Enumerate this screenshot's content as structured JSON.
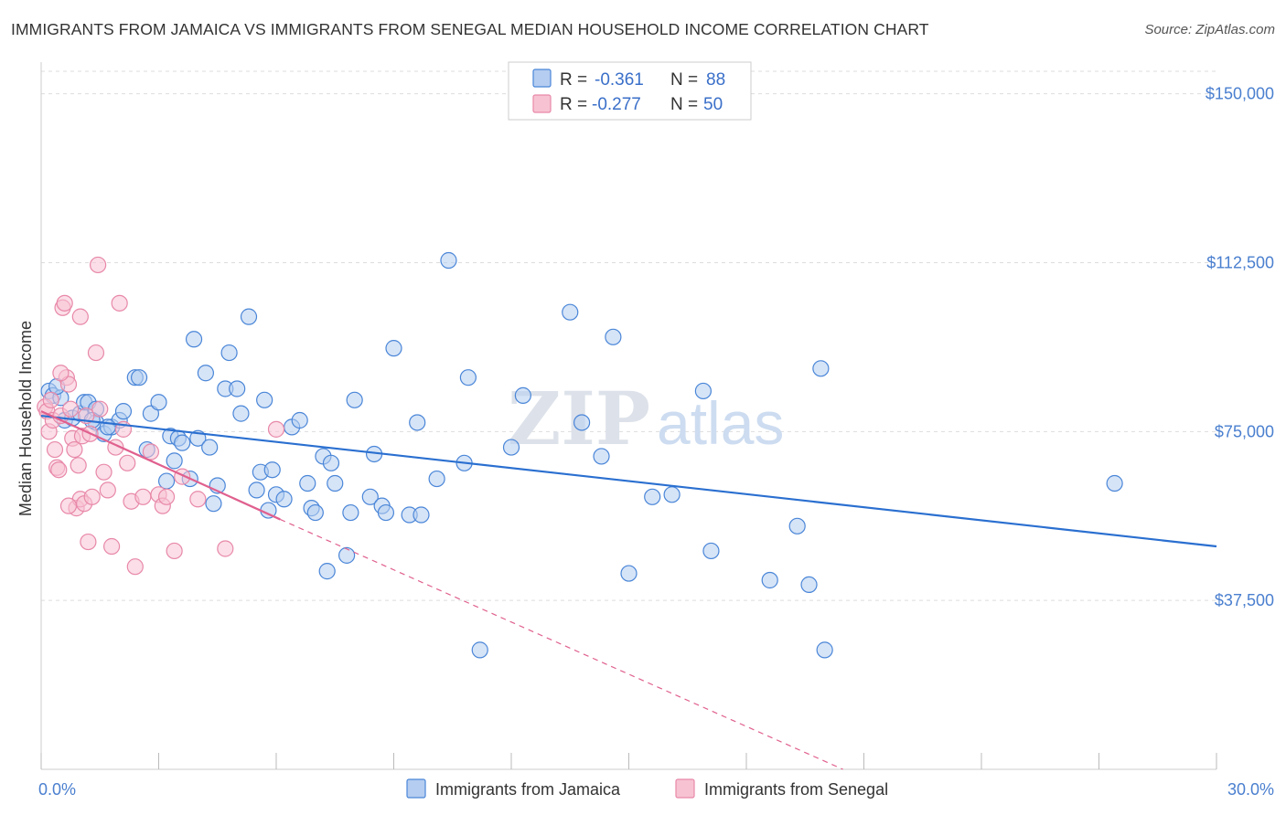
{
  "title": "IMMIGRANTS FROM JAMAICA VS IMMIGRANTS FROM SENEGAL MEDIAN HOUSEHOLD INCOME CORRELATION CHART",
  "source": "Source: ZipAtlas.com",
  "watermark": {
    "zip": "ZIP",
    "atlas": "atlas"
  },
  "colors": {
    "jamaica": "#4a86d8",
    "jamaica_fill": "#b5cdf0",
    "jamaica_line": "#2a6fd0",
    "senegal": "#e888a8",
    "senegal_fill": "#f7c3d3",
    "senegal_line": "#e0608e",
    "grid": "#dddddd",
    "tick_label": "#4a7fcf"
  },
  "legend": {
    "rows": [
      {
        "r_label": "R =",
        "r_value": "-0.361",
        "n_label": "N =",
        "n_value": "88"
      },
      {
        "r_label": "R =",
        "r_value": "-0.277",
        "n_label": "N =",
        "n_value": "50"
      }
    ]
  },
  "chart_data": {
    "type": "scatter",
    "ylabel": "Median Household Income",
    "xlabel": "",
    "x_tick_labels": [
      "0.0%",
      "30.0%"
    ],
    "y_tick_labels": [
      "$37,500",
      "$75,000",
      "$112,500",
      "$150,000"
    ],
    "y_ticks": [
      37500,
      75000,
      112500,
      150000
    ],
    "xlim": [
      0,
      30
    ],
    "ylim": [
      0,
      155000
    ],
    "grid": true,
    "legend_position": "top-center",
    "series": [
      {
        "name": "Immigrants from Jamaica",
        "r": -0.361,
        "n": 88,
        "trend": {
          "x": [
            0,
            30
          ],
          "y": [
            78500,
            49500
          ]
        },
        "points": [
          [
            0.2,
            84000
          ],
          [
            0.3,
            83000
          ],
          [
            0.5,
            82500
          ],
          [
            0.6,
            77500
          ],
          [
            0.8,
            78000
          ],
          [
            1.0,
            79000
          ],
          [
            1.1,
            81500
          ],
          [
            1.2,
            81500
          ],
          [
            1.4,
            80000
          ],
          [
            1.4,
            77000
          ],
          [
            1.6,
            74500
          ],
          [
            1.8,
            76000
          ],
          [
            2.0,
            77500
          ],
          [
            2.1,
            79500
          ],
          [
            2.4,
            87000
          ],
          [
            2.5,
            87000
          ],
          [
            2.7,
            71000
          ],
          [
            2.8,
            79000
          ],
          [
            3.0,
            81500
          ],
          [
            3.2,
            64000
          ],
          [
            3.3,
            74000
          ],
          [
            3.4,
            68500
          ],
          [
            3.5,
            73500
          ],
          [
            3.6,
            72500
          ],
          [
            3.8,
            64500
          ],
          [
            3.9,
            95500
          ],
          [
            4.0,
            73500
          ],
          [
            4.2,
            88000
          ],
          [
            4.3,
            71500
          ],
          [
            4.4,
            59000
          ],
          [
            4.5,
            63000
          ],
          [
            4.7,
            84500
          ],
          [
            4.8,
            92500
          ],
          [
            5.0,
            84500
          ],
          [
            5.1,
            79000
          ],
          [
            5.3,
            100500
          ],
          [
            5.5,
            62000
          ],
          [
            5.6,
            66000
          ],
          [
            5.7,
            82000
          ],
          [
            5.8,
            57500
          ],
          [
            5.9,
            66500
          ],
          [
            6.0,
            61000
          ],
          [
            6.2,
            60000
          ],
          [
            6.4,
            76000
          ],
          [
            6.6,
            77500
          ],
          [
            6.8,
            63500
          ],
          [
            6.9,
            58000
          ],
          [
            7.0,
            57000
          ],
          [
            7.2,
            69500
          ],
          [
            7.4,
            68000
          ],
          [
            7.5,
            63500
          ],
          [
            7.3,
            44000
          ],
          [
            7.8,
            47500
          ],
          [
            7.9,
            57000
          ],
          [
            8.0,
            82000
          ],
          [
            8.4,
            60500
          ],
          [
            8.5,
            70000
          ],
          [
            8.7,
            58500
          ],
          [
            8.8,
            57000
          ],
          [
            9.0,
            93500
          ],
          [
            9.4,
            56500
          ],
          [
            9.6,
            77000
          ],
          [
            9.7,
            56500
          ],
          [
            10.1,
            64500
          ],
          [
            10.4,
            113000
          ],
          [
            10.8,
            68000
          ],
          [
            10.9,
            87000
          ],
          [
            11.2,
            26500
          ],
          [
            12.0,
            71500
          ],
          [
            12.3,
            83000
          ],
          [
            13.5,
            101500
          ],
          [
            13.8,
            77000
          ],
          [
            14.3,
            69500
          ],
          [
            14.6,
            96000
          ],
          [
            15.0,
            43500
          ],
          [
            15.6,
            60500
          ],
          [
            16.1,
            61000
          ],
          [
            16.9,
            84000
          ],
          [
            17.1,
            48500
          ],
          [
            18.6,
            42000
          ],
          [
            19.3,
            54000
          ],
          [
            19.6,
            41000
          ],
          [
            19.9,
            89000
          ],
          [
            20.0,
            26500
          ],
          [
            27.4,
            63500
          ],
          [
            1.7,
            76000
          ],
          [
            0.4,
            85000
          ],
          [
            1.3,
            77500
          ]
        ]
      },
      {
        "name": "Immigrants from Senegal",
        "r": -0.277,
        "n": 50,
        "trend": {
          "x": [
            0,
            6.1
          ],
          "y": [
            79500,
            55500
          ]
        },
        "trend_extension": {
          "x": [
            6.1,
            21.5
          ],
          "y": [
            55500,
            -4000
          ]
        },
        "points": [
          [
            0.1,
            80500
          ],
          [
            0.15,
            79500
          ],
          [
            0.2,
            75000
          ],
          [
            0.25,
            82000
          ],
          [
            0.3,
            77500
          ],
          [
            0.35,
            71000
          ],
          [
            0.4,
            67000
          ],
          [
            0.45,
            66500
          ],
          [
            0.5,
            78500
          ],
          [
            0.55,
            102500
          ],
          [
            0.6,
            103500
          ],
          [
            0.65,
            87000
          ],
          [
            0.7,
            85500
          ],
          [
            0.75,
            80000
          ],
          [
            0.8,
            73500
          ],
          [
            0.85,
            71000
          ],
          [
            0.9,
            58000
          ],
          [
            0.95,
            67500
          ],
          [
            1.0,
            60000
          ],
          [
            1.05,
            74000
          ],
          [
            1.1,
            59000
          ],
          [
            1.15,
            78500
          ],
          [
            1.2,
            50500
          ],
          [
            1.25,
            74500
          ],
          [
            1.3,
            60500
          ],
          [
            1.4,
            92500
          ],
          [
            1.45,
            112000
          ],
          [
            1.5,
            80000
          ],
          [
            1.6,
            66000
          ],
          [
            1.7,
            62000
          ],
          [
            1.8,
            49500
          ],
          [
            1.9,
            71500
          ],
          [
            2.0,
            103500
          ],
          [
            2.1,
            75500
          ],
          [
            2.2,
            68000
          ],
          [
            2.3,
            59500
          ],
          [
            2.4,
            45000
          ],
          [
            2.6,
            60500
          ],
          [
            2.8,
            70500
          ],
          [
            3.0,
            61000
          ],
          [
            3.1,
            58500
          ],
          [
            3.2,
            60500
          ],
          [
            3.4,
            48500
          ],
          [
            3.6,
            65000
          ],
          [
            4.0,
            60000
          ],
          [
            4.7,
            49000
          ],
          [
            6.0,
            75500
          ],
          [
            1.0,
            100500
          ],
          [
            0.5,
            88000
          ],
          [
            0.7,
            58500
          ]
        ]
      }
    ]
  }
}
